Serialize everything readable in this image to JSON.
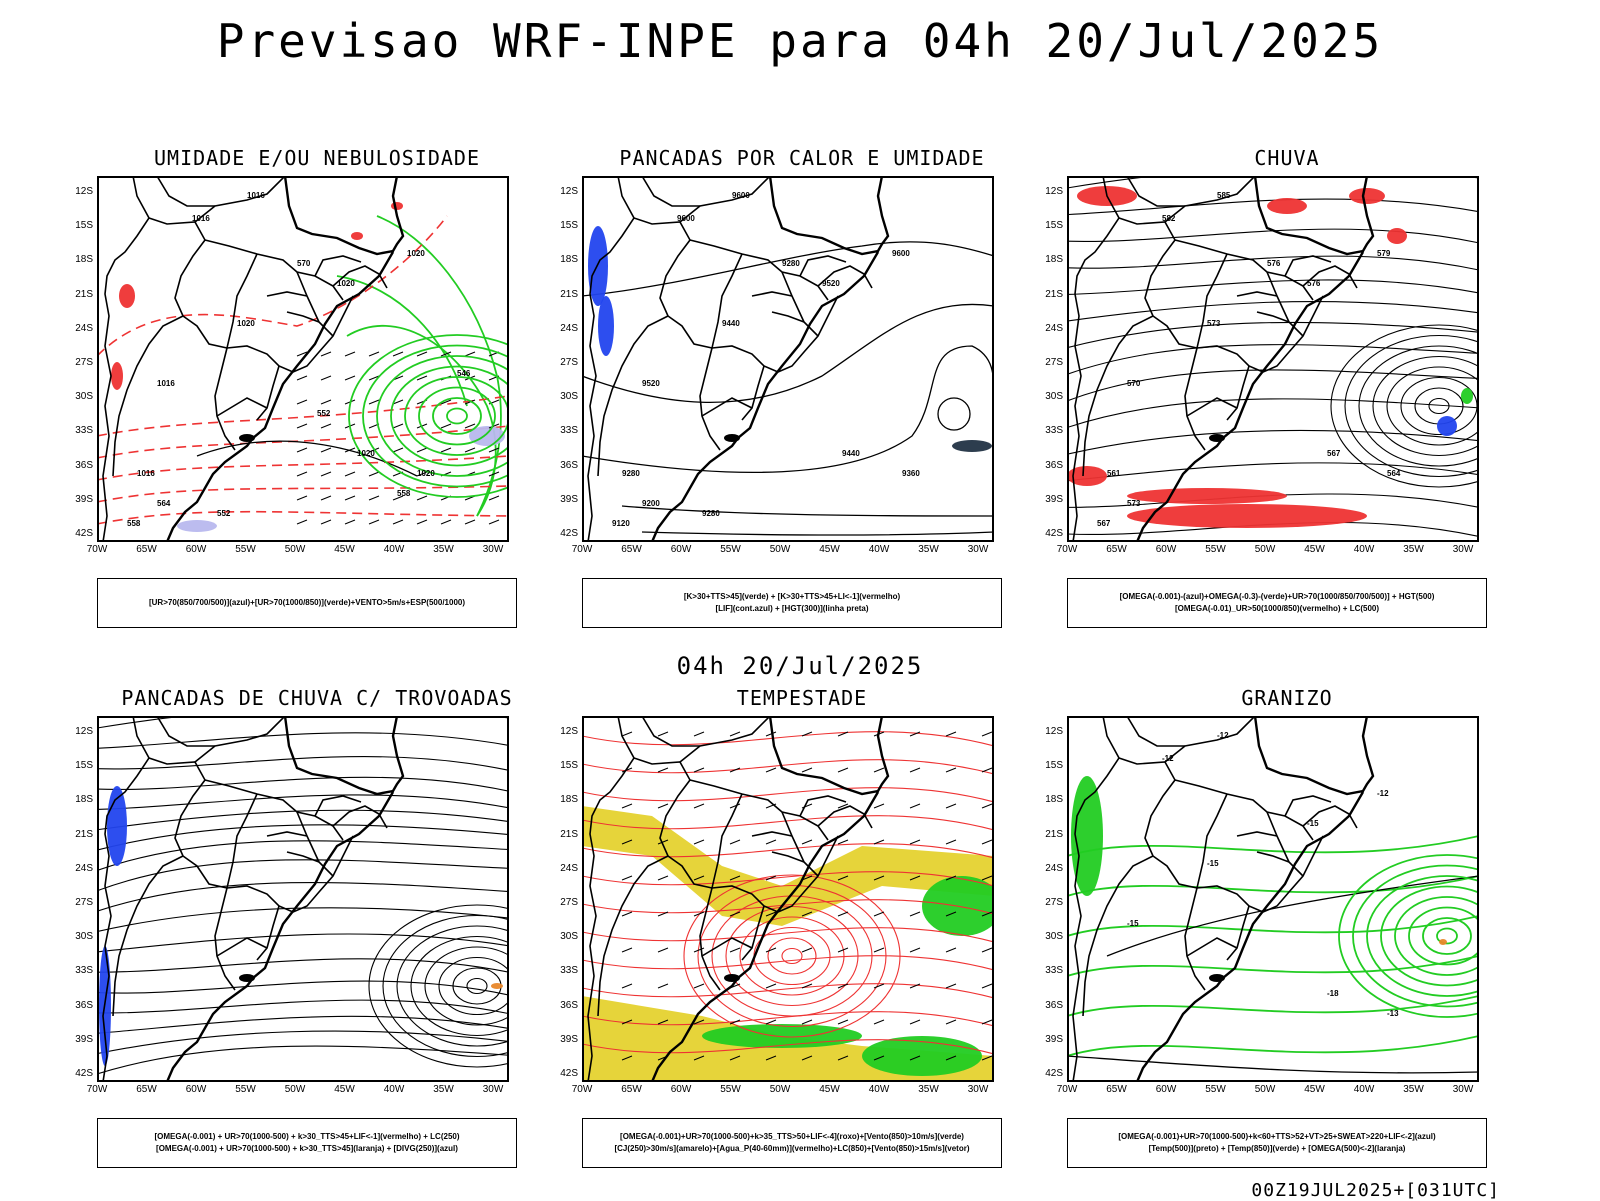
{
  "main_title": "Previsao WRF-INPE  para 04h 20/Jul/2025",
  "mid_title": "04h 20/Jul/2025",
  "footer_stamp": "00Z19JUL2025+[031UTC]",
  "lat_labels": [
    "12S",
    "15S",
    "18S",
    "21S",
    "24S",
    "27S",
    "30S",
    "33S",
    "36S",
    "39S",
    "42S"
  ],
  "lon_labels": [
    "70W",
    "65W",
    "60W",
    "55W",
    "50W",
    "45W",
    "40W",
    "35W",
    "30W"
  ],
  "colors": {
    "red": "#ee3333",
    "green": "#22cc22",
    "blue": "#2244ee",
    "yellow": "#e6d43a",
    "purple": "#b8b8ee",
    "orange": "#e8872a"
  },
  "panels": [
    {
      "title": "UMIDADE E/OU NEBULOSIDADE",
      "legend": [
        "[UR>70(850/700/500)](azul)+[UR>70(1000/850)](verde)+VENTO>5m/s+ESP(500/1000)"
      ],
      "contour_labels": [
        "1016",
        "1016",
        "1020",
        "1020",
        "1020",
        "1016",
        "1020",
        "1020",
        "1016",
        "570",
        "564",
        "558",
        "552",
        "546",
        "558",
        "552"
      ]
    },
    {
      "title": "PANCADAS POR CALOR E UMIDADE",
      "legend": [
        "[K>30+TTS>45](verde) + [K>30+TTS>45+LI<-1](vermelho)",
        "[LIF](cont.azul) + [HGT(300)](linha preta)"
      ],
      "contour_labels": [
        "9600",
        "9600",
        "9600",
        "9520",
        "9440",
        "9520",
        "9440",
        "9360",
        "9280",
        "9280",
        "9200",
        "9120",
        "9280"
      ]
    },
    {
      "title": "CHUVA",
      "legend": [
        "[OMEGA(-0.001)-(azul)+OMEGA(-0.3)-(verde)+UR>70(1000/850/700/500)] + HGT(500)",
        "[OMEGA(-0.01)_UR>50(1000/850)(vermelho) + LC(500)"
      ],
      "contour_labels": [
        "585",
        "582",
        "579",
        "576",
        "573",
        "570",
        "567",
        "564",
        "561",
        "576",
        "573",
        "567"
      ]
    },
    {
      "title": "PANCADAS DE CHUVA C/ TROVOADAS",
      "legend": [
        "[OMEGA(-0.001) + UR>70(1000-500) + k>30_TTS>45+LIF<-1](vermelho) + LC(250)",
        "[OMEGA(-0.001) + UR>70(1000-500) + k>30_TTS>45](laranja) + [DIVG(250)](azul)"
      ],
      "contour_labels": []
    },
    {
      "title": "TEMPESTADE",
      "legend": [
        "[OMEGA(-0.001)+UR>70(1000-500)+k>35_TTS>50+LIF<-4](roxo)+[Vento(850)>10m/s](verde)",
        "[CJ(250)>30m/s](amarelo)+[Agua_P(40-60mm)](vermelho)+LC(850)+[Vento(850)>15m/s](vetor)"
      ],
      "contour_labels": []
    },
    {
      "title": "GRANIZO",
      "legend": [
        "[OMEGA(-0.001)+UR>70(1000-500)+k<60+TTS>52+VT>25+SWEAT>220+LIF<-2](azul)",
        "[Temp(500)](preto) + [Temp(850)](verde) + [OMEGA(500)<-2](laranja)"
      ],
      "contour_labels": [
        "-12",
        "-12",
        "-12",
        "-15",
        "-15",
        "-15",
        "-18",
        "-13"
      ]
    }
  ]
}
